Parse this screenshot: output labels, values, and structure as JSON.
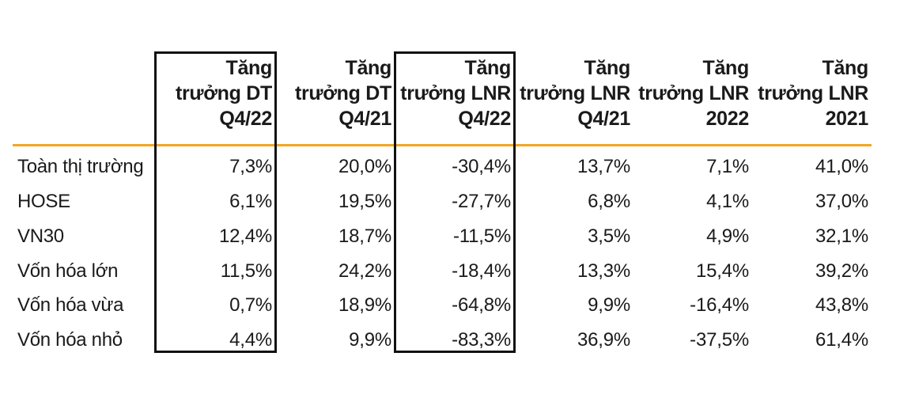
{
  "table": {
    "columns": [
      {
        "line1": "Tăng",
        "line2": "trưởng DT",
        "line3": "Q4/22"
      },
      {
        "line1": "Tăng",
        "line2": "trưởng DT",
        "line3": "Q4/21"
      },
      {
        "line1": "Tăng",
        "line2": "trưởng LNR",
        "line3": "Q4/22"
      },
      {
        "line1": "Tăng",
        "line2": "trưởng LNR",
        "line3": "Q4/21"
      },
      {
        "line1": "Tăng",
        "line2": "trưởng LNR",
        "line3": "2022"
      },
      {
        "line1": "Tăng",
        "line2": "trưởng LNR",
        "line3": "2021"
      }
    ],
    "rows": [
      {
        "label": "Toàn thị trường",
        "values": [
          "7,3%",
          "20,0%",
          "-30,4%",
          "13,7%",
          "7,1%",
          "41,0%"
        ]
      },
      {
        "label": "HOSE",
        "values": [
          "6,1%",
          "19,5%",
          "-27,7%",
          "6,8%",
          "4,1%",
          "37,0%"
        ]
      },
      {
        "label": "VN30",
        "values": [
          "12,4%",
          "18,7%",
          "-11,5%",
          "3,5%",
          "4,9%",
          "32,1%"
        ]
      },
      {
        "label": "Vốn hóa lớn",
        "values": [
          "11,5%",
          "24,2%",
          "-18,4%",
          "13,3%",
          "15,4%",
          "39,2%"
        ]
      },
      {
        "label": "Vốn hóa vừa",
        "values": [
          "0,7%",
          "18,9%",
          "-64,8%",
          "9,9%",
          "-16,4%",
          "43,8%"
        ]
      },
      {
        "label": "Vốn hóa nhỏ",
        "values": [
          "4,4%",
          "9,9%",
          "-83,3%",
          "36,9%",
          "-37,5%",
          "61,4%"
        ]
      }
    ],
    "highlighted_columns": [
      0,
      2
    ],
    "separator_color": "#f5a623",
    "highlight_border_color": "#111111"
  }
}
